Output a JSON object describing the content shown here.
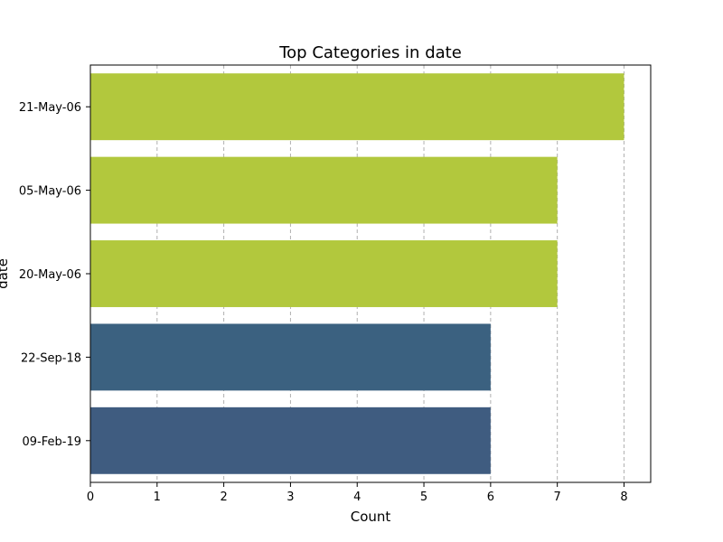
{
  "chart_data": {
    "type": "bar",
    "orientation": "horizontal",
    "title": "Top Categories in date",
    "xlabel": "Count",
    "ylabel": "date",
    "categories": [
      "21-May-06",
      "05-May-06",
      "20-May-06",
      "22-Sep-18",
      "09-Feb-19"
    ],
    "values": [
      8,
      7,
      7,
      6,
      6
    ],
    "bar_colors": [
      "#b2c83d",
      "#b2c83d",
      "#b2c83d",
      "#3b6180",
      "#3f5c80"
    ],
    "xlim": [
      0,
      8.4
    ],
    "xticks": [
      0,
      1,
      2,
      3,
      4,
      5,
      6,
      7,
      8
    ],
    "grid": "x-dashed"
  }
}
